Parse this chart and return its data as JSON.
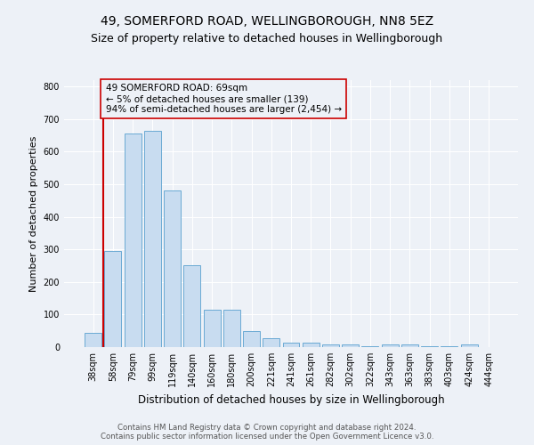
{
  "title": "49, SOMERFORD ROAD, WELLINGBOROUGH, NN8 5EZ",
  "subtitle": "Size of property relative to detached houses in Wellingborough",
  "xlabel": "Distribution of detached houses by size in Wellingborough",
  "ylabel": "Number of detached properties",
  "footer_line1": "Contains HM Land Registry data © Crown copyright and database right 2024.",
  "footer_line2": "Contains public sector information licensed under the Open Government Licence v3.0.",
  "bar_labels": [
    "38sqm",
    "58sqm",
    "79sqm",
    "99sqm",
    "119sqm",
    "140sqm",
    "160sqm",
    "180sqm",
    "200sqm",
    "221sqm",
    "241sqm",
    "261sqm",
    "282sqm",
    "302sqm",
    "322sqm",
    "343sqm",
    "363sqm",
    "383sqm",
    "403sqm",
    "424sqm",
    "444sqm"
  ],
  "bar_values": [
    45,
    295,
    655,
    665,
    480,
    252,
    115,
    115,
    50,
    27,
    15,
    15,
    7,
    7,
    3,
    8,
    8,
    3,
    3,
    8,
    0
  ],
  "bar_color": "#c8dcf0",
  "bar_edge_color": "#6aaad4",
  "bar_edge_width": 0.7,
  "vline_color": "#cc0000",
  "vline_x_index": 1,
  "annotation_text": "49 SOMERFORD ROAD: 69sqm\n← 5% of detached houses are smaller (139)\n94% of semi-detached houses are larger (2,454) →",
  "annotation_box_edgecolor": "#cc0000",
  "annotation_fontsize": 7.5,
  "ylim": [
    0,
    820
  ],
  "yticks": [
    0,
    100,
    200,
    300,
    400,
    500,
    600,
    700,
    800
  ],
  "bg_color": "#edf1f7",
  "plot_bg_color": "#edf1f7",
  "grid_color": "#ffffff",
  "title_fontsize": 10,
  "subtitle_fontsize": 9,
  "axis_label_fontsize": 8.5,
  "ylabel_fontsize": 8,
  "tick_fontsize": 7
}
